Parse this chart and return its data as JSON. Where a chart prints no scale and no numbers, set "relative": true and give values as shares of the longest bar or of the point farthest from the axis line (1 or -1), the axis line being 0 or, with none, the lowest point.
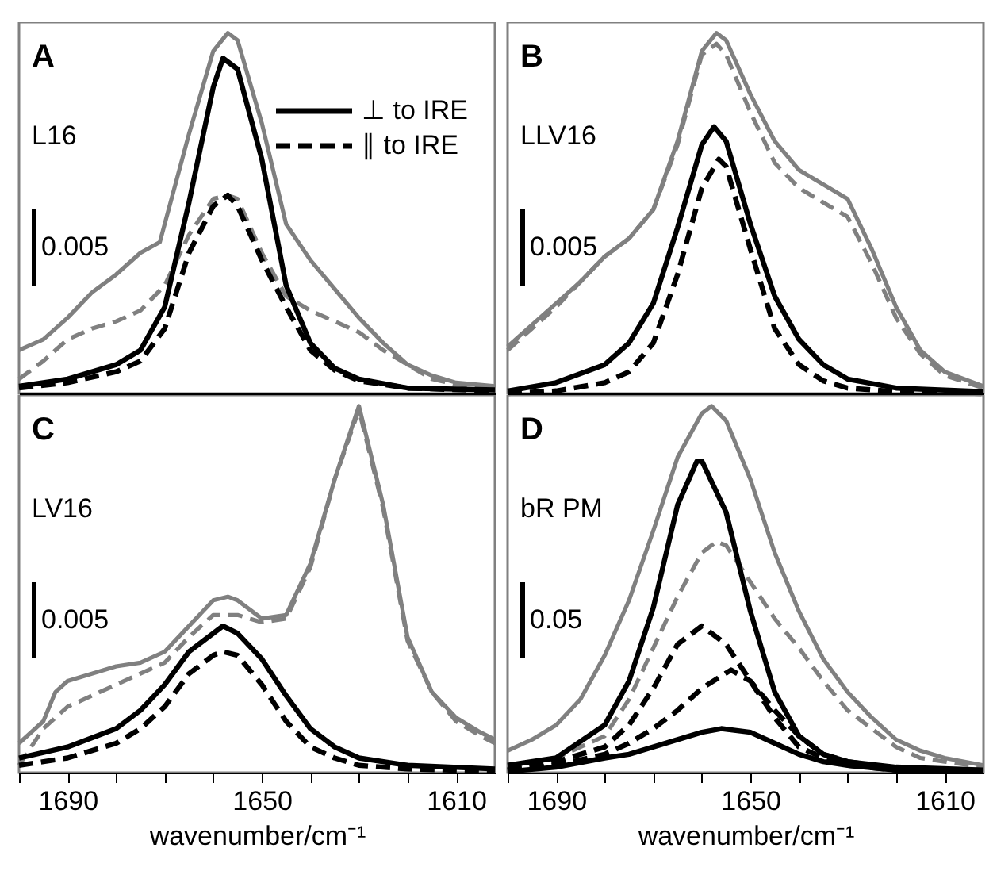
{
  "chart_data": [
    {
      "type": "line",
      "relative": true,
      "xlim": [
        1700,
        1602
      ],
      "tick_labels": false,
      "legend": "top right",
      "annotations": [
        "A",
        "L16",
        "0.005"
      ],
      "xticks": [
        1690,
        1650,
        1610
      ],
      "series": [
        {
          "color": "#808080",
          "line_style": "solid",
          "x": [
            1700,
            1695,
            1690,
            1685,
            1680,
            1675,
            1671,
            1670,
            1665,
            1660,
            1657,
            1655,
            1650,
            1645,
            1640,
            1635,
            1630,
            1625,
            1620,
            1615,
            1610,
            1602
          ],
          "values": [
            0.12,
            0.15,
            0.21,
            0.28,
            0.33,
            0.39,
            0.42,
            0.47,
            0.72,
            0.95,
            1,
            0.98,
            0.75,
            0.47,
            0.37,
            0.29,
            0.21,
            0.14,
            0.08,
            0.05,
            0.03,
            0.02
          ]
        },
        {
          "color": "#808080",
          "line_style": "dashed",
          "x": [
            1700,
            1695,
            1690,
            1685,
            1680,
            1675,
            1670,
            1665,
            1660,
            1657,
            1655,
            1650,
            1645,
            1640,
            1635,
            1630,
            1625,
            1620,
            1615,
            1610,
            1602
          ],
          "values": [
            0.04,
            0.09,
            0.15,
            0.18,
            0.2,
            0.23,
            0.3,
            0.44,
            0.54,
            0.55,
            0.54,
            0.39,
            0.27,
            0.23,
            0.2,
            0.17,
            0.12,
            0.08,
            0.04,
            0.025,
            0.015
          ]
        },
        {
          "name": "⊥ to IRE",
          "color": "#000000",
          "line_style": "solid",
          "x": [
            1700,
            1690,
            1680,
            1675,
            1670,
            1665,
            1660,
            1658,
            1655,
            1650,
            1645,
            1640,
            1635,
            1630,
            1620,
            1602
          ],
          "values": [
            0.02,
            0.04,
            0.08,
            0.12,
            0.24,
            0.53,
            0.85,
            0.93,
            0.9,
            0.65,
            0.3,
            0.14,
            0.07,
            0.04,
            0.015,
            0.01
          ]
        },
        {
          "name": "∥ to IRE",
          "color": "#000000",
          "line_style": "dashed",
          "x": [
            1700,
            1690,
            1680,
            1675,
            1670,
            1665,
            1660,
            1657,
            1655,
            1650,
            1645,
            1640,
            1635,
            1630,
            1620,
            1602
          ],
          "values": [
            0.015,
            0.03,
            0.06,
            0.09,
            0.18,
            0.39,
            0.52,
            0.55,
            0.52,
            0.37,
            0.24,
            0.12,
            0.065,
            0.035,
            0.015,
            0.007
          ]
        }
      ]
    },
    {
      "type": "line",
      "relative": true,
      "xlim": [
        1700,
        1602
      ],
      "tick_labels": false,
      "annotations": [
        "B",
        "LLV16",
        "0.005"
      ],
      "xticks": [
        1690,
        1650,
        1610
      ],
      "series": [
        {
          "color": "#808080",
          "line_style": "solid",
          "x": [
            1700,
            1695,
            1690,
            1685,
            1680,
            1675,
            1670,
            1665,
            1660,
            1657,
            1655,
            1650,
            1645,
            1640,
            1635,
            1630,
            1625,
            1620,
            1615,
            1610,
            1602
          ],
          "values": [
            0.13,
            0.19,
            0.25,
            0.31,
            0.38,
            0.43,
            0.51,
            0.7,
            0.95,
            1,
            0.98,
            0.83,
            0.7,
            0.62,
            0.58,
            0.54,
            0.4,
            0.24,
            0.12,
            0.06,
            0.02
          ]
        },
        {
          "color": "#808080",
          "line_style": "dashed",
          "x": [
            1700,
            1695,
            1690,
            1685,
            1680,
            1675,
            1670,
            1665,
            1660,
            1657,
            1655,
            1650,
            1645,
            1640,
            1635,
            1630,
            1625,
            1620,
            1615,
            1610,
            1602
          ],
          "values": [
            0.12,
            0.18,
            0.24,
            0.31,
            0.38,
            0.43,
            0.51,
            0.69,
            0.94,
            0.97,
            0.94,
            0.78,
            0.64,
            0.57,
            0.53,
            0.49,
            0.36,
            0.21,
            0.11,
            0.05,
            0.015
          ]
        },
        {
          "color": "#000000",
          "line_style": "solid",
          "x": [
            1700,
            1690,
            1680,
            1675,
            1670,
            1665,
            1660,
            1657.5,
            1655,
            1650,
            1645,
            1640,
            1635,
            1630,
            1620,
            1602
          ],
          "values": [
            0.007,
            0.03,
            0.08,
            0.14,
            0.25,
            0.46,
            0.69,
            0.74,
            0.7,
            0.47,
            0.27,
            0.15,
            0.08,
            0.04,
            0.015,
            0.005
          ]
        },
        {
          "color": "#000000",
          "line_style": "dashed",
          "x": [
            1700,
            1690,
            1680,
            1675,
            1670,
            1665,
            1660,
            1656.5,
            1655,
            1650,
            1645,
            1640,
            1635,
            1630,
            1620,
            1602
          ],
          "values": [
            0,
            0.007,
            0.03,
            0.06,
            0.14,
            0.33,
            0.57,
            0.65,
            0.63,
            0.4,
            0.18,
            0.08,
            0.035,
            0.015,
            0.005,
            0
          ]
        }
      ]
    },
    {
      "type": "line",
      "relative": true,
      "xlim": [
        1700,
        1602
      ],
      "tick_labels": "x",
      "xlabel": "wavenumber/cm⁻¹",
      "annotations": [
        "C",
        "LV16",
        "0.005"
      ],
      "xticks": [
        {
          "value": 1700,
          "label": null
        },
        1690,
        {
          "value": 1680,
          "label": null
        },
        {
          "value": 1670,
          "label": null
        },
        {
          "value": 1660,
          "label": null
        },
        1650,
        {
          "value": 1640,
          "label": null
        },
        {
          "value": 1630,
          "label": null
        },
        {
          "value": 1620,
          "label": null
        },
        1610
      ],
      "series": [
        {
          "color": "#808080",
          "line_style": "solid",
          "x": [
            1700,
            1695,
            1692.5,
            1690,
            1685,
            1680,
            1675,
            1670,
            1665,
            1660,
            1657,
            1655,
            1650,
            1645,
            1640,
            1635,
            1630,
            1625,
            1620,
            1615,
            1610,
            1605,
            1602
          ],
          "values": [
            0.08,
            0.14,
            0.22,
            0.25,
            0.27,
            0.29,
            0.3,
            0.33,
            0.4,
            0.47,
            0.48,
            0.47,
            0.42,
            0.43,
            0.57,
            0.8,
            1,
            0.73,
            0.37,
            0.22,
            0.15,
            0.11,
            0.09
          ]
        },
        {
          "color": "#808080",
          "line_style": "dashed",
          "x": [
            1700,
            1695,
            1690,
            1685,
            1680,
            1675,
            1670,
            1665,
            1660,
            1657,
            1655,
            1650,
            1645,
            1640,
            1635,
            1630,
            1625,
            1620,
            1615,
            1610,
            1605,
            1602
          ],
          "values": [
            0.02,
            0.12,
            0.18,
            0.21,
            0.24,
            0.27,
            0.3,
            0.37,
            0.43,
            0.43,
            0.43,
            0.41,
            0.42,
            0.56,
            0.8,
            0.99,
            0.72,
            0.36,
            0.22,
            0.14,
            0.1,
            0.08
          ]
        },
        {
          "color": "#000000",
          "line_style": "solid",
          "x": [
            1700,
            1690,
            1680,
            1675,
            1670,
            1665,
            1660,
            1658,
            1655,
            1650,
            1645,
            1640,
            1635,
            1630,
            1620,
            1602
          ],
          "values": [
            0.04,
            0.07,
            0.12,
            0.17,
            0.24,
            0.33,
            0.38,
            0.4,
            0.38,
            0.31,
            0.21,
            0.12,
            0.07,
            0.04,
            0.02,
            0.01
          ]
        },
        {
          "color": "#000000",
          "line_style": "dashed",
          "x": [
            1700,
            1690,
            1680,
            1675,
            1670,
            1665,
            1660,
            1658,
            1655,
            1650,
            1645,
            1640,
            1635,
            1630,
            1620,
            1602
          ],
          "values": [
            0.02,
            0.04,
            0.08,
            0.12,
            0.18,
            0.27,
            0.32,
            0.33,
            0.32,
            0.24,
            0.14,
            0.07,
            0.04,
            0.02,
            0.01,
            0.004
          ]
        }
      ]
    },
    {
      "type": "line",
      "relative": true,
      "xlim": [
        1700,
        1602
      ],
      "tick_labels": "x",
      "xlabel": "wavenumber/cm⁻¹",
      "annotations": [
        "D",
        "bR PM",
        "0.05"
      ],
      "xticks": [
        {
          "value": 1700,
          "label": null
        },
        1690,
        {
          "value": 1680,
          "label": null
        },
        {
          "value": 1670,
          "label": null
        },
        {
          "value": 1660,
          "label": null
        },
        1650,
        {
          "value": 1640,
          "label": null
        },
        {
          "value": 1630,
          "label": null
        },
        {
          "value": 1620,
          "label": null
        },
        1610
      ],
      "series": [
        {
          "color": "#808080",
          "line_style": "solid",
          "x": [
            1700,
            1695,
            1690,
            1685,
            1680,
            1675,
            1670,
            1665,
            1660,
            1658,
            1655,
            1650,
            1645,
            1640,
            1635,
            1630,
            1625,
            1620,
            1615,
            1610,
            1602
          ],
          "values": [
            0.06,
            0.09,
            0.13,
            0.2,
            0.32,
            0.47,
            0.66,
            0.86,
            0.98,
            1,
            0.96,
            0.8,
            0.6,
            0.44,
            0.31,
            0.22,
            0.15,
            0.09,
            0.06,
            0.04,
            0.02
          ]
        },
        {
          "color": "#808080",
          "line_style": "dashed",
          "x": [
            1700,
            1690,
            1680,
            1675,
            1670,
            1665,
            1660,
            1657,
            1655,
            1650,
            1645,
            1640,
            1635,
            1630,
            1625,
            1620,
            1615,
            1610,
            1602
          ],
          "values": [
            0.015,
            0.04,
            0.1,
            0.2,
            0.34,
            0.48,
            0.6,
            0.63,
            0.62,
            0.52,
            0.42,
            0.34,
            0.25,
            0.17,
            0.12,
            0.07,
            0.04,
            0.03,
            0.015
          ]
        },
        {
          "color": "#000000",
          "line_style": "solid",
          "x": [
            1700,
            1690,
            1680,
            1675,
            1670,
            1665,
            1661,
            1660,
            1655,
            1650,
            1645,
            1640,
            1635,
            1630,
            1620,
            1602
          ],
          "values": [
            0.02,
            0.04,
            0.13,
            0.25,
            0.45,
            0.73,
            0.85,
            0.85,
            0.71,
            0.44,
            0.22,
            0.1,
            0.05,
            0.03,
            0.015,
            0.007
          ]
        },
        {
          "color": "#000000",
          "line_style": "dashed",
          "x": [
            1700,
            1690,
            1680,
            1675,
            1670,
            1665,
            1660,
            1655,
            1650,
            1645,
            1640,
            1635,
            1630,
            1620,
            1602
          ],
          "values": [
            0.007,
            0.03,
            0.07,
            0.13,
            0.23,
            0.35,
            0.4,
            0.35,
            0.25,
            0.15,
            0.07,
            0.04,
            0.02,
            0.007,
            0.003
          ]
        },
        {
          "color": "#000000",
          "line_style": "dashed",
          "x": [
            1700,
            1690,
            1680,
            1675,
            1670,
            1665,
            1660,
            1654,
            1650,
            1645,
            1640,
            1635,
            1630,
            1620,
            1602
          ],
          "values": [
            0.007,
            0.02,
            0.05,
            0.08,
            0.12,
            0.17,
            0.23,
            0.28,
            0.25,
            0.17,
            0.1,
            0.05,
            0.03,
            0.01,
            0.003
          ]
        },
        {
          "color": "#000000",
          "line_style": "solid",
          "x": [
            1700,
            1690,
            1680,
            1675,
            1670,
            1665,
            1660,
            1656,
            1650,
            1645,
            1640,
            1635,
            1630,
            1620,
            1602
          ],
          "values": [
            0.003,
            0.015,
            0.04,
            0.05,
            0.07,
            0.09,
            0.11,
            0.12,
            0.11,
            0.08,
            0.05,
            0.03,
            0.02,
            0.007,
            0.003
          ]
        }
      ]
    }
  ]
}
